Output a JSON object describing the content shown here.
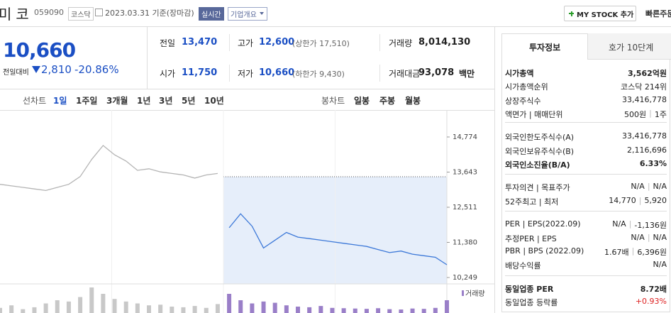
{
  "header": {
    "name": "미코",
    "code": "059090",
    "market": "코스닥",
    "date": "2023.03.31 기준(장마감)",
    "realtime": "실시간",
    "overview": "기업개요",
    "mystock": "MY STOCK 추가",
    "quick": "빠른주문"
  },
  "price": {
    "current": "10,660",
    "change_label": "전일대비",
    "change": "2,810",
    "rate": "-20.86%"
  },
  "quote": [
    [
      {
        "label": "전일",
        "value": "13,470"
      },
      {
        "label": "고가",
        "value": "12,600",
        "extra": "(상한가 17,510)"
      },
      {
        "label": "거래량",
        "value": "8,014,130"
      }
    ],
    [
      {
        "label": "시가",
        "value": "11,750"
      },
      {
        "label": "저가",
        "value": "10,660",
        "extra": "(하한가 9,430)"
      },
      {
        "label": "거래대금",
        "value": "93,078",
        "unit": "백만"
      }
    ]
  ],
  "chart_tabs": {
    "line_label": "선차트",
    "line": [
      "1일",
      "1주일",
      "3개월",
      "1년",
      "3년",
      "5년",
      "10년"
    ],
    "candle_label": "봉차트",
    "candle": [
      "일봉",
      "주봉",
      "월봉"
    ]
  },
  "chart_data": {
    "type": "line",
    "categories": [
      null,
      null,
      null,
      null,
      null,
      null,
      null,
      null,
      null,
      null,
      null,
      null,
      null,
      null,
      null,
      null,
      null,
      null,
      null,
      null,
      null,
      null,
      null,
      null,
      null,
      null,
      null,
      null,
      null,
      null,
      null,
      null,
      null,
      null,
      null,
      null,
      null,
      null,
      null,
      null
    ],
    "ylim": [
      10043,
      15642
    ],
    "yticks": [
      {
        "value": 14774,
        "label": "14,774"
      },
      {
        "value": 13643,
        "label": "13,643"
      },
      {
        "value": 12511,
        "label": "12,511"
      },
      {
        "value": 11380,
        "label": "11,380"
      },
      {
        "value": 10249,
        "label": "10,249"
      }
    ],
    "grid": false,
    "series": [
      {
        "color": "#b4b4b4",
        "values": [
          13250,
          13200,
          13150,
          13100,
          13050,
          13150,
          13250,
          13500,
          14050,
          14500,
          14200,
          14000,
          13700,
          13750,
          13650,
          13600,
          13550,
          13450,
          13550,
          13600,
          null,
          null,
          null,
          null,
          null,
          null,
          null,
          null,
          null,
          null,
          null,
          null,
          null,
          null,
          null,
          null,
          null,
          null,
          null,
          null
        ]
      },
      {
        "color": "#3c78d8",
        "values": [
          null,
          null,
          null,
          null,
          null,
          null,
          null,
          null,
          null,
          null,
          null,
          null,
          null,
          null,
          null,
          null,
          null,
          null,
          null,
          null,
          11850,
          12300,
          11900,
          11200,
          11450,
          11700,
          11550,
          11500,
          11450,
          11400,
          11350,
          11300,
          11250,
          11150,
          11050,
          11100,
          11000,
          10950,
          10900,
          10660
        ]
      }
    ],
    "volume": {
      "label": "거래량",
      "series": [
        {
          "color": "#c8c8c8",
          "values": [
            80,
            120,
            60,
            90,
            150,
            200,
            180,
            250,
            400,
            300,
            220,
            180,
            150,
            120,
            130,
            100,
            90,
            110,
            80,
            140,
            null,
            null,
            null,
            null,
            null,
            null,
            null,
            null,
            null,
            null,
            null,
            null,
            null,
            null,
            null,
            null,
            null,
            null,
            null,
            null
          ]
        },
        {
          "color": "#9a7fc8",
          "values": [
            null,
            null,
            null,
            null,
            null,
            null,
            null,
            null,
            null,
            null,
            null,
            null,
            null,
            null,
            null,
            null,
            null,
            null,
            null,
            null,
            300,
            200,
            150,
            180,
            160,
            120,
            100,
            90,
            110,
            80,
            75,
            70,
            65,
            75,
            60,
            55,
            70,
            65,
            80,
            200
          ]
        }
      ]
    }
  },
  "info": {
    "tabs": [
      "투자정보",
      "호가 10단계"
    ],
    "groups": [
      [
        {
          "label": "시가총액",
          "bold": true,
          "values": [
            "3,562억원"
          ]
        },
        {
          "label": "시가총액순위",
          "values": [
            "코스닥 214위"
          ]
        },
        {
          "label": "상장주식수",
          "values": [
            "33,416,778"
          ]
        },
        {
          "label": "액면가 | 매매단위",
          "values": [
            "500원",
            "1주"
          ]
        }
      ],
      [
        {
          "label": "외국인한도주식수(A)",
          "values": [
            "33,416,778"
          ]
        },
        {
          "label": "외국인보유주식수(B)",
          "values": [
            "2,116,696"
          ]
        },
        {
          "label": "외국인소진율(B/A)",
          "bold": true,
          "values": [
            "6.33%"
          ]
        }
      ],
      [
        {
          "label": "투자의견 | 목표주가",
          "values": [
            "N/A",
            "N/A"
          ]
        },
        {
          "label": "52주최고 | 최저",
          "values": [
            "14,770",
            "5,920"
          ]
        }
      ],
      [
        {
          "label": "PER | EPS(2022.09)",
          "values": [
            "N/A",
            "-1,136원"
          ]
        },
        {
          "label": "추정PER | EPS",
          "values": [
            "N/A",
            "N/A"
          ]
        },
        {
          "label": "PBR | BPS (2022.09)",
          "values": [
            "1.67배",
            "6,396원"
          ]
        },
        {
          "label": "배당수익률",
          "values": [
            "N/A"
          ]
        }
      ],
      [
        {
          "label": "동일업종 PER",
          "bold": true,
          "values": [
            "8.72배"
          ]
        },
        {
          "label": "동일업종 등락률",
          "values": [
            "+0.93%"
          ]
        }
      ]
    ]
  }
}
